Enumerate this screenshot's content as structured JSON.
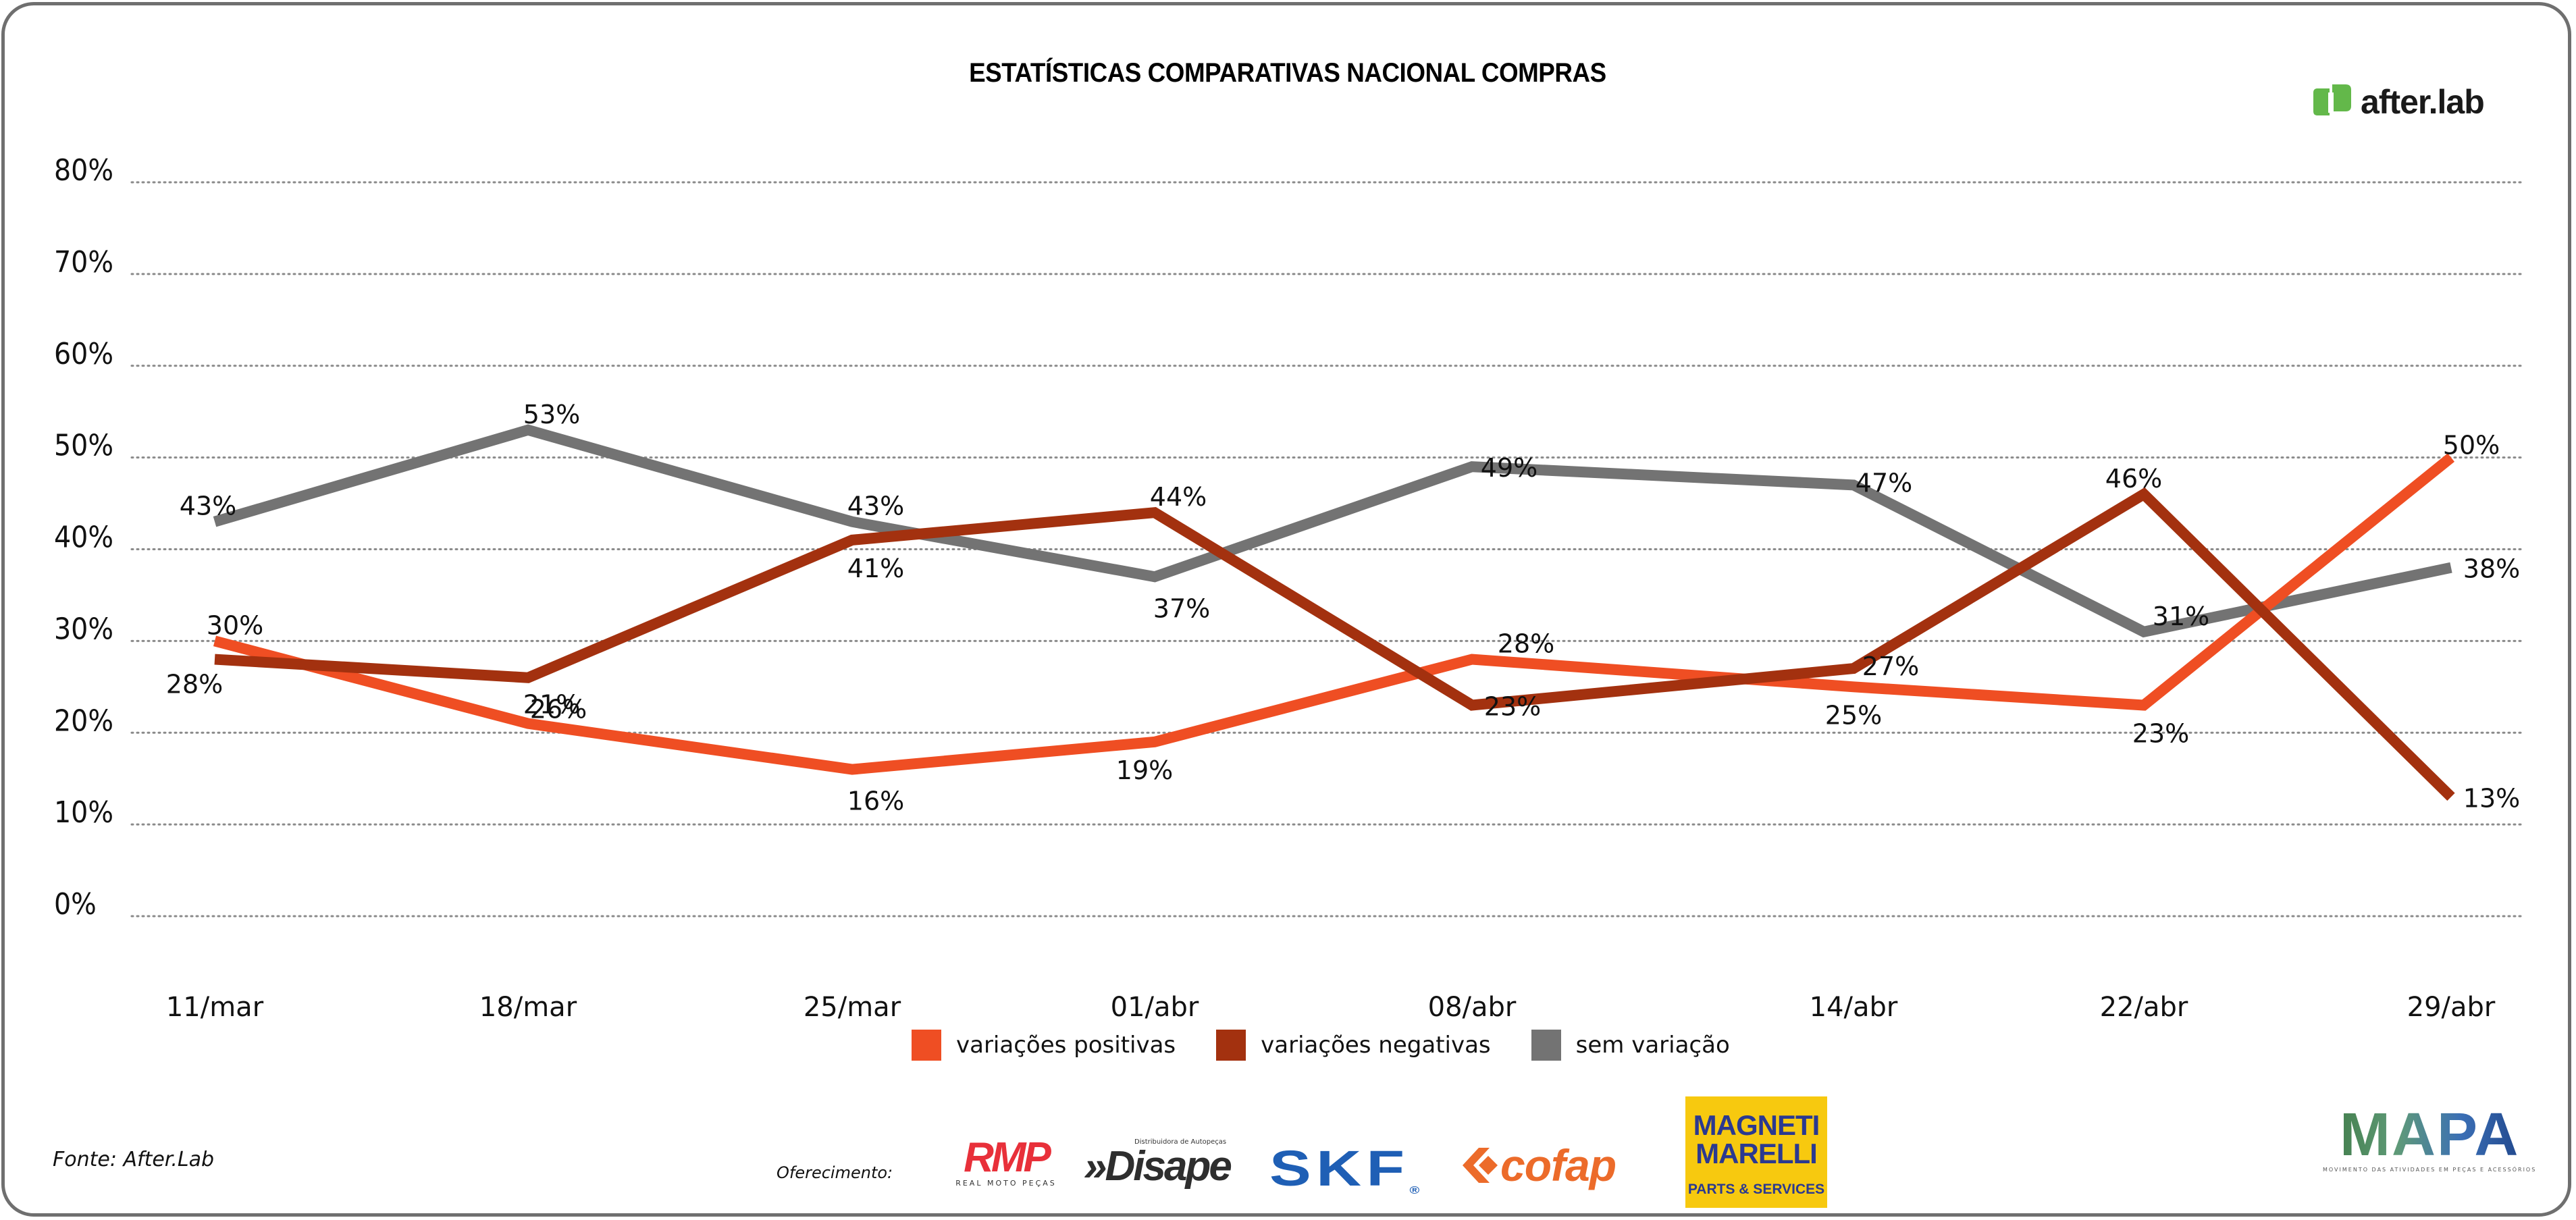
{
  "header": {
    "title": "ESTATÍSTICAS COMPARATIVAS NACIONAL COMPRAS",
    "brand_logo": "after.lab"
  },
  "chart_data": {
    "type": "line",
    "title": "ESTATÍSTICAS COMPARATIVAS NACIONAL COMPRAS",
    "xlabel": "",
    "ylabel": "",
    "categories": [
      "11/mar",
      "18/mar",
      "25/mar",
      "01/abr",
      "08/abr",
      "14/abr",
      "22/abr",
      "29/abr"
    ],
    "ylim": [
      0,
      80
    ],
    "yticks": [
      0,
      10,
      20,
      30,
      40,
      50,
      60,
      70,
      80
    ],
    "ytick_labels": [
      "0%",
      "10%",
      "20%",
      "30%",
      "40%",
      "50%",
      "60%",
      "70%",
      "80%"
    ],
    "grid": true,
    "grid_style": "dotted horizontal",
    "legend_position": "bottom-center",
    "series": [
      {
        "name": "variações positivas",
        "color": "#ef4e23",
        "values": [
          30,
          21,
          16,
          19,
          28,
          25,
          23,
          50
        ],
        "labels": [
          "30%",
          "21%",
          "16%",
          "19%",
          "28%",
          "25%",
          "23%",
          "50%"
        ]
      },
      {
        "name": "variações negativas",
        "color": "#a3310f",
        "values": [
          28,
          26,
          41,
          44,
          23,
          27,
          46,
          13
        ],
        "labels": [
          "28%",
          "26%",
          "41%",
          "44%",
          "23%",
          "27%",
          "46%",
          "13%"
        ]
      },
      {
        "name": "sem variação",
        "color": "#737373",
        "values": [
          43,
          53,
          43,
          37,
          49,
          47,
          31,
          38
        ],
        "labels": [
          "43%",
          "53%",
          "43%",
          "37%",
          "49%",
          "47%",
          "31%",
          "38%"
        ]
      }
    ]
  },
  "legend": {
    "items": [
      {
        "label": "variações positivas",
        "color": "#ef4e23"
      },
      {
        "label": "variações negativas",
        "color": "#a3310f"
      },
      {
        "label": "sem variação",
        "color": "#737373"
      }
    ]
  },
  "footer": {
    "source": "Fonte: After.Lab",
    "sponsor_label": "Oferecimento:",
    "sponsors": {
      "rmp": {
        "name": "RMP",
        "subtitle": "REAL MOTO PEÇAS"
      },
      "disape": {
        "name": "Disape",
        "subtitle": "Distribuidora de Autopeças",
        "prefix": "»"
      },
      "skf": {
        "name": "SKF",
        "mark": "®"
      },
      "cofap": {
        "name": "cofap"
      },
      "magneti": {
        "line1": "MAGNETI",
        "line2": "MARELLI",
        "tagline": "PARTS & SERVICES"
      },
      "mapa": {
        "name": "MAPA",
        "subtitle": "MOVIMENTO DAS ATIVIDADES EM PEÇAS E ACESSÓRIOS"
      }
    }
  }
}
